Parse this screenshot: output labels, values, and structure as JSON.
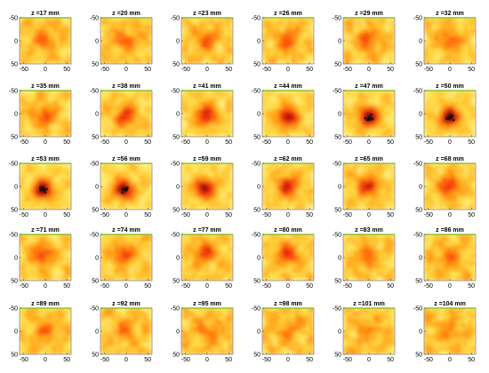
{
  "chart_data": {
    "type": "heatmap",
    "layout": {
      "rows": 5,
      "cols": 6
    },
    "panel_title_format": "z ={z} mm",
    "z_values_mm": [
      17,
      20,
      23,
      26,
      29,
      32,
      35,
      38,
      41,
      44,
      47,
      50,
      53,
      56,
      59,
      62,
      65,
      68,
      71,
      74,
      77,
      80,
      83,
      86,
      89,
      92,
      95,
      98,
      101,
      104
    ],
    "x_ticks": [
      "-50",
      "0",
      "50"
    ],
    "y_ticks": [
      "-50",
      "0",
      "50"
    ],
    "xlim": [
      -60,
      60
    ],
    "ylim": [
      -50,
      50
    ],
    "colormap": [
      "#ffffc8",
      "#ffe04a",
      "#ff9d12",
      "#ff4a10",
      "#c81010",
      "#5a0000"
    ],
    "peak_intensity": [
      0.38,
      0.36,
      0.38,
      0.45,
      0.42,
      0.4,
      0.45,
      0.55,
      0.7,
      0.85,
      0.93,
      1.0,
      1.0,
      0.95,
      0.88,
      0.72,
      0.65,
      0.62,
      0.55,
      0.55,
      0.55,
      0.55,
      0.38,
      0.35,
      0.28,
      0.26,
      0.24,
      0.22,
      0.22,
      0.22
    ],
    "source_x_mm": [
      0,
      0,
      0,
      0,
      0,
      0,
      0,
      0,
      0,
      0,
      0,
      0,
      -5,
      -5,
      -5,
      0,
      0,
      0,
      -5,
      -5,
      -5,
      0,
      -5,
      0,
      0,
      0,
      0,
      0,
      0,
      0
    ],
    "source_y_mm": [
      0,
      0,
      0,
      0,
      0,
      0,
      5,
      5,
      5,
      8,
      8,
      8,
      8,
      8,
      5,
      0,
      0,
      0,
      -5,
      -5,
      -10,
      -5,
      0,
      0,
      0,
      0,
      0,
      0,
      0,
      0
    ]
  }
}
